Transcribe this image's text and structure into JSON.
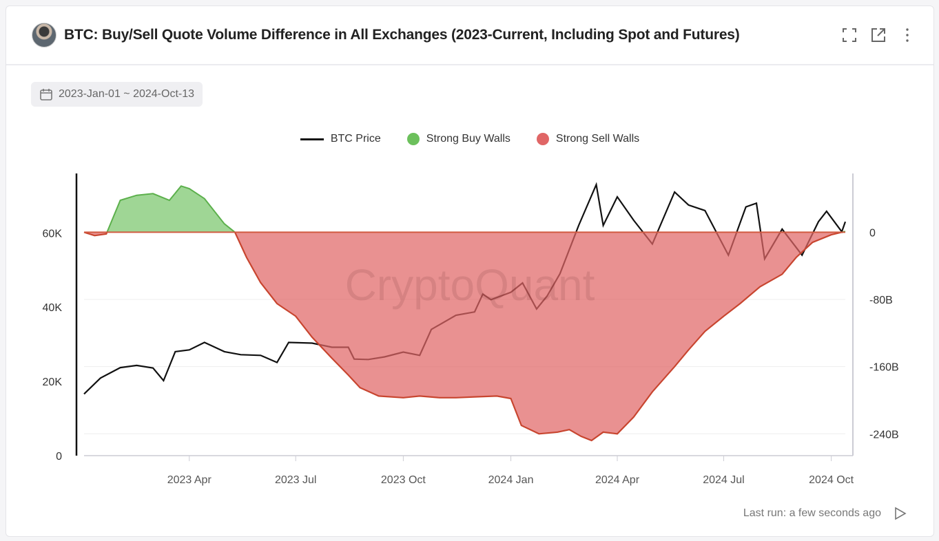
{
  "header": {
    "title": "BTC: Buy/Sell Quote Volume Difference in All Exchanges (2023-Current, Including Spot and Futures)",
    "icons": [
      "fullscreen-icon",
      "external-link-icon",
      "more-vertical-icon"
    ]
  },
  "date_range": {
    "label": "2023-Jan-01 ~ 2024-Oct-13",
    "icon": "calendar-icon"
  },
  "watermark": "CryptoQuant",
  "footer": {
    "last_run": "Last run: a few seconds ago",
    "icon": "play-icon"
  },
  "colors": {
    "price": "#111111",
    "buy": "#6cc05c",
    "sell": "#e06666"
  },
  "chart_data": {
    "type": "area",
    "legend": [
      "BTC Price",
      "Strong Buy Walls",
      "Strong Sell Walls"
    ],
    "legend_placement": "top",
    "x_ticks": [
      "2023 Apr",
      "2023 Jul",
      "2023 Oct",
      "2024 Jan",
      "2024 Apr",
      "2024 Jul",
      "2024 Oct"
    ],
    "x_tick_dates": [
      "2023-04-01",
      "2023-07-01",
      "2023-10-01",
      "2024-01-01",
      "2024-04-01",
      "2024-07-01",
      "2024-10-01"
    ],
    "xlim": [
      "2023-01-01",
      "2024-10-13"
    ],
    "y_left": {
      "ticks": [
        "0",
        "20K",
        "40K",
        "60K"
      ],
      "tick_values": [
        0,
        20000,
        40000,
        60000
      ],
      "ylim": [
        0,
        76000
      ]
    },
    "y_right": {
      "ticks": [
        "0",
        "-80B",
        "-160B",
        "-240B"
      ],
      "tick_values": [
        0,
        -80,
        -160,
        -240
      ],
      "ylim": [
        -266,
        70
      ]
    },
    "grid": true,
    "series": [
      {
        "name": "BTC Price",
        "axis": "left",
        "points": [
          [
            "2023-01-01",
            16600
          ],
          [
            "2023-01-15",
            20900
          ],
          [
            "2023-02-01",
            23700
          ],
          [
            "2023-02-15",
            24300
          ],
          [
            "2023-03-01",
            23600
          ],
          [
            "2023-03-10",
            20200
          ],
          [
            "2023-03-20",
            28000
          ],
          [
            "2023-04-01",
            28500
          ],
          [
            "2023-04-14",
            30500
          ],
          [
            "2023-05-01",
            28000
          ],
          [
            "2023-05-15",
            27200
          ],
          [
            "2023-06-01",
            27000
          ],
          [
            "2023-06-15",
            25100
          ],
          [
            "2023-06-25",
            30500
          ],
          [
            "2023-07-15",
            30300
          ],
          [
            "2023-08-01",
            29200
          ],
          [
            "2023-08-15",
            29200
          ],
          [
            "2023-08-20",
            26000
          ],
          [
            "2023-09-01",
            25900
          ],
          [
            "2023-09-15",
            26600
          ],
          [
            "2023-10-01",
            27900
          ],
          [
            "2023-10-15",
            27000
          ],
          [
            "2023-10-25",
            34000
          ],
          [
            "2023-11-15",
            37800
          ],
          [
            "2023-12-01",
            38700
          ],
          [
            "2023-12-08",
            43500
          ],
          [
            "2023-12-15",
            42000
          ],
          [
            "2024-01-01",
            44000
          ],
          [
            "2024-01-11",
            46500
          ],
          [
            "2024-01-23",
            39500
          ],
          [
            "2024-02-01",
            43000
          ],
          [
            "2024-02-12",
            49000
          ],
          [
            "2024-02-28",
            62000
          ],
          [
            "2024-03-14",
            73000
          ],
          [
            "2024-03-20",
            62000
          ],
          [
            "2024-04-01",
            69700
          ],
          [
            "2024-04-15",
            63400
          ],
          [
            "2024-05-01",
            57000
          ],
          [
            "2024-05-20",
            71000
          ],
          [
            "2024-06-01",
            67500
          ],
          [
            "2024-06-15",
            66000
          ],
          [
            "2024-07-05",
            54000
          ],
          [
            "2024-07-20",
            67000
          ],
          [
            "2024-07-29",
            68000
          ],
          [
            "2024-08-05",
            53000
          ],
          [
            "2024-08-20",
            61000
          ],
          [
            "2024-09-06",
            54000
          ],
          [
            "2024-09-20",
            63000
          ],
          [
            "2024-09-27",
            65800
          ],
          [
            "2024-10-10",
            60300
          ],
          [
            "2024-10-13",
            63000
          ]
        ]
      },
      {
        "axis": "right",
        "unit": "B",
        "points": [
          [
            "2023-01-01",
            0
          ],
          [
            "2023-01-10",
            -4
          ],
          [
            "2023-01-20",
            -2
          ],
          [
            "2023-02-01",
            38
          ],
          [
            "2023-02-15",
            44
          ],
          [
            "2023-03-01",
            46
          ],
          [
            "2023-03-15",
            38
          ],
          [
            "2023-03-25",
            55
          ],
          [
            "2023-04-01",
            52
          ],
          [
            "2023-04-14",
            40
          ],
          [
            "2023-05-01",
            10
          ],
          [
            "2023-05-10",
            0
          ],
          [
            "2023-05-20",
            -30
          ],
          [
            "2023-06-01",
            -60
          ],
          [
            "2023-06-15",
            -85
          ],
          [
            "2023-07-01",
            -100
          ],
          [
            "2023-07-15",
            -125
          ],
          [
            "2023-08-01",
            -150
          ],
          [
            "2023-08-15",
            -170
          ],
          [
            "2023-08-25",
            -185
          ],
          [
            "2023-09-10",
            -195
          ],
          [
            "2023-10-01",
            -197
          ],
          [
            "2023-10-15",
            -195
          ],
          [
            "2023-11-01",
            -197
          ],
          [
            "2023-11-15",
            -197
          ],
          [
            "2023-12-01",
            -196
          ],
          [
            "2023-12-20",
            -195
          ],
          [
            "2024-01-01",
            -198
          ],
          [
            "2024-01-10",
            -230
          ],
          [
            "2024-01-25",
            -240
          ],
          [
            "2024-02-10",
            -238
          ],
          [
            "2024-02-20",
            -235
          ],
          [
            "2024-03-01",
            -243
          ],
          [
            "2024-03-10",
            -248
          ],
          [
            "2024-03-20",
            -238
          ],
          [
            "2024-04-01",
            -240
          ],
          [
            "2024-04-15",
            -220
          ],
          [
            "2024-05-01",
            -190
          ],
          [
            "2024-05-20",
            -160
          ],
          [
            "2024-06-01",
            -140
          ],
          [
            "2024-06-15",
            -118
          ],
          [
            "2024-07-01",
            -100
          ],
          [
            "2024-07-15",
            -85
          ],
          [
            "2024-08-01",
            -65
          ],
          [
            "2024-08-20",
            -50
          ],
          [
            "2024-09-01",
            -30
          ],
          [
            "2024-09-15",
            -12
          ],
          [
            "2024-10-01",
            -3
          ],
          [
            "2024-10-13",
            1
          ]
        ]
      }
    ]
  }
}
